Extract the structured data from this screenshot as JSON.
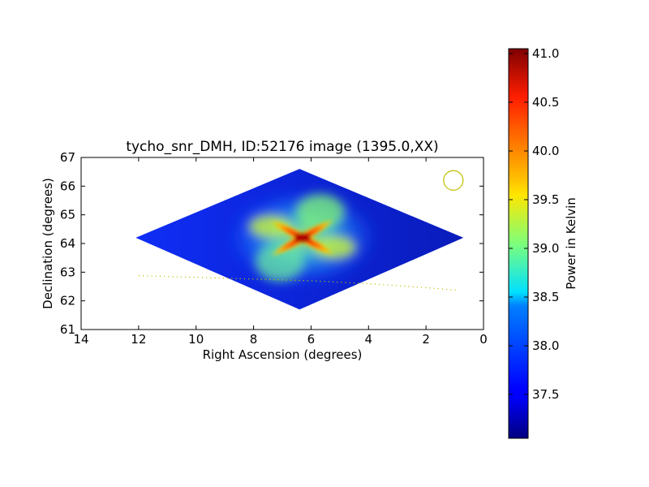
{
  "chart_data": {
    "type": "heatmap",
    "title": "tycho_snr_DMH, ID:52176 image (1395.0,XX)",
    "xlabel": "Right Ascension (degrees)",
    "ylabel": "Declination (degrees)",
    "xlim": [
      14,
      0
    ],
    "ylim": [
      61,
      67
    ],
    "x_ticks": [
      14,
      12,
      10,
      8,
      6,
      4,
      2,
      0
    ],
    "y_ticks": [
      61,
      62,
      63,
      64,
      65,
      66,
      67
    ],
    "x_tick_labels": [
      "14",
      "12",
      "10",
      "8",
      "6",
      "4",
      "2",
      "0"
    ],
    "y_tick_labels": [
      "61",
      "62",
      "63",
      "64",
      "65",
      "66",
      "67"
    ],
    "image_footprint": {
      "shape": "diamond",
      "vertices_ra_dec": [
        [
          6.4,
          66.6
        ],
        [
          12.1,
          64.2
        ],
        [
          6.4,
          61.7
        ],
        [
          0.7,
          64.2
        ]
      ]
    },
    "background_level_K": 37.4,
    "peak": {
      "ra": 6.3,
      "dec": 64.2,
      "value_K": 41.0
    },
    "structure": "X-shaped emission centred at RA 6.3, Dec 64.2",
    "beam_marker": {
      "ra": 1.05,
      "dec": 66.2,
      "color": "#bfbf00"
    },
    "dotted_track": {
      "color": "#bfbf00",
      "ra": [
        12.0,
        10.0,
        8.0,
        6.0,
        4.0,
        2.0,
        0.9
      ],
      "dec": [
        62.88,
        62.82,
        62.76,
        62.7,
        62.6,
        62.46,
        62.37
      ]
    },
    "colorbar": {
      "label": "Power in Kelvin",
      "range": [
        37.05,
        41.05
      ],
      "ticks": [
        37.5,
        38.0,
        38.5,
        39.0,
        39.5,
        40.0,
        40.5,
        41.0
      ],
      "tick_labels": [
        "37.5",
        "38.0",
        "38.5",
        "39.0",
        "39.5",
        "40.0",
        "40.5",
        "41.0"
      ],
      "colormap": "jet"
    },
    "grid": false
  }
}
